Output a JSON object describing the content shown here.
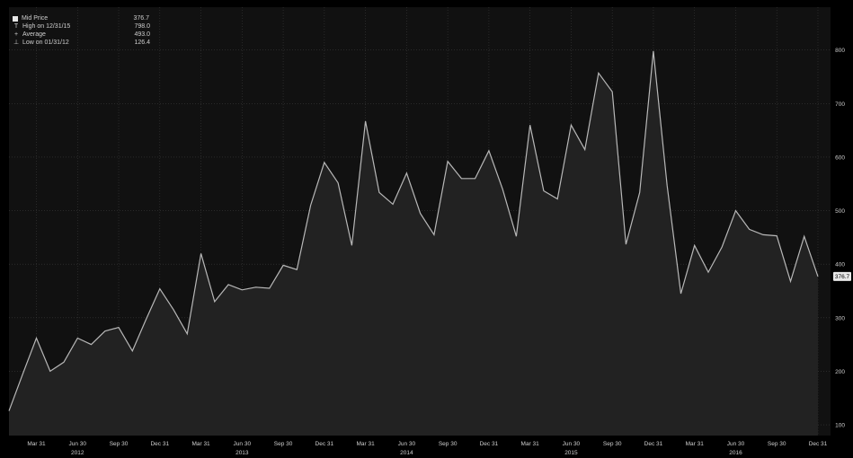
{
  "legend": {
    "items": [
      {
        "marker": "box",
        "label": "Mid Price",
        "value": "376.7"
      },
      {
        "marker": "T",
        "label": "High on 12/31/15",
        "value": "798.0"
      },
      {
        "marker": "+",
        "label": "Average",
        "value": "493.0"
      },
      {
        "marker": "⊥",
        "label": "Low on 01/31/12",
        "value": "126.4"
      }
    ]
  },
  "colors": {
    "background": "#000000",
    "plot_fill": "#222222",
    "line": "#b8b8b8",
    "grid": "#3a3a3a",
    "axis_text": "#cfcfcf"
  },
  "chart_data": {
    "type": "area",
    "title": "",
    "xlabel": "",
    "ylabel": "",
    "ylim": [
      80,
      880
    ],
    "y_ticks": [
      100,
      200,
      300,
      400,
      500,
      600,
      700,
      800
    ],
    "x_tick_labels": [
      "Mar 31",
      "Jun 30",
      "Sep 30",
      "Dec 31",
      "Mar 31",
      "Jun 30",
      "Sep 30",
      "Dec 31",
      "Mar 31",
      "Jun 30",
      "Sep 30",
      "Dec 31",
      "Mar 31",
      "Jun 30",
      "Sep 30",
      "Dec 31",
      "Mar 31",
      "Jun 30",
      "Sep 30",
      "Dec 31"
    ],
    "x_tick_index": [
      2,
      5,
      8,
      11,
      14,
      17,
      20,
      23,
      26,
      29,
      32,
      35,
      38,
      41,
      44,
      47,
      50,
      53,
      56,
      59
    ],
    "year_labels": [
      "2012",
      "2013",
      "2014",
      "2015",
      "2016"
    ],
    "year_label_index": [
      5,
      17,
      29,
      41,
      53
    ],
    "grid": true,
    "last_value_label": "376.7",
    "series": [
      {
        "name": "Mid Price",
        "x": [
          "2012-01",
          "2012-02",
          "2012-03",
          "2012-04",
          "2012-05",
          "2012-06",
          "2012-07",
          "2012-08",
          "2012-09",
          "2012-10",
          "2012-11",
          "2012-12",
          "2013-01",
          "2013-02",
          "2013-03",
          "2013-04",
          "2013-05",
          "2013-06",
          "2013-07",
          "2013-08",
          "2013-09",
          "2013-10",
          "2013-11",
          "2013-12",
          "2014-01",
          "2014-02",
          "2014-03",
          "2014-04",
          "2014-05",
          "2014-06",
          "2014-07",
          "2014-08",
          "2014-09",
          "2014-10",
          "2014-11",
          "2014-12",
          "2015-01",
          "2015-02",
          "2015-03",
          "2015-04",
          "2015-05",
          "2015-06",
          "2015-07",
          "2015-08",
          "2015-09",
          "2015-10",
          "2015-11",
          "2015-12",
          "2016-01",
          "2016-02",
          "2016-03",
          "2016-04",
          "2016-05",
          "2016-06",
          "2016-07",
          "2016-08",
          "2016-09",
          "2016-10",
          "2016-11",
          "2016-12"
        ],
        "values": [
          126,
          195,
          262,
          200,
          217,
          262,
          250,
          275,
          282,
          238,
          297,
          354,
          315,
          270,
          420,
          330,
          362,
          352,
          357,
          355,
          398,
          390,
          510,
          590,
          552,
          435,
          667,
          534,
          512,
          570,
          495,
          455,
          592,
          560,
          560,
          612,
          540,
          452,
          660,
          537,
          522,
          660,
          614,
          757,
          722,
          437,
          534,
          798,
          547,
          345,
          435,
          385,
          432,
          500,
          465,
          455,
          453,
          368,
          452,
          377
        ]
      }
    ]
  }
}
